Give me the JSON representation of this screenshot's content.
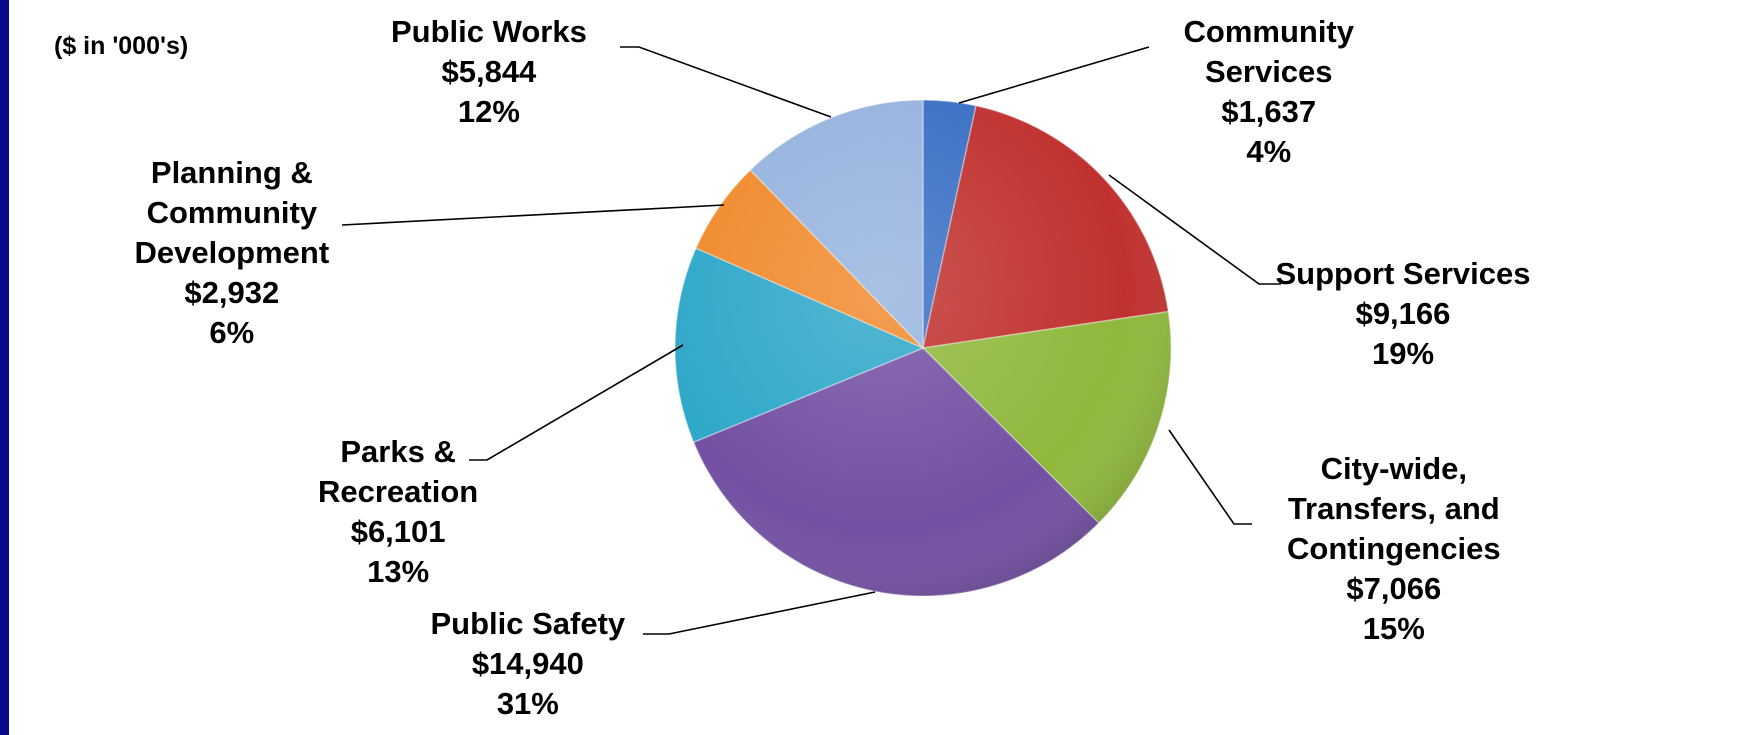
{
  "chart_data": {
    "type": "pie",
    "units_note": "($ in '000's)",
    "slices": [
      {
        "name": "Community Services",
        "name_lines": [
          "Community",
          "Services"
        ],
        "value": 1637,
        "value_label": "$1,637",
        "percent_label": "4%",
        "color": "#3a6fc4"
      },
      {
        "name": "Support Services",
        "name_lines": [
          "Support Services"
        ],
        "value": 9166,
        "value_label": "$9,166",
        "percent_label": "19%",
        "color": "#c0312e"
      },
      {
        "name": "City-wide, Transfers, and Contingencies",
        "name_lines": [
          "City-wide,",
          "Transfers, and",
          "Contingencies"
        ],
        "value": 7066,
        "value_label": "$7,066",
        "percent_label": "15%",
        "color": "#8fb83c"
      },
      {
        "name": "Public Safety",
        "name_lines": [
          "Public Safety"
        ],
        "value": 14940,
        "value_label": "$14,940",
        "percent_label": "31%",
        "color": "#7350a3"
      },
      {
        "name": "Parks & Recreation",
        "name_lines": [
          "Parks &",
          "Recreation"
        ],
        "value": 6101,
        "value_label": "$6,101",
        "percent_label": "13%",
        "color": "#2ea7c9"
      },
      {
        "name": "Planning & Community Development",
        "name_lines": [
          "Planning &",
          "Community",
          "Development"
        ],
        "value": 2932,
        "value_label": "$2,932",
        "percent_label": "6%",
        "color": "#f0892b"
      },
      {
        "name": "Public Works",
        "name_lines": [
          "Public Works"
        ],
        "value": 5844,
        "value_label": "$5,844",
        "percent_label": "12%",
        "color": "#96b3de"
      }
    ]
  }
}
